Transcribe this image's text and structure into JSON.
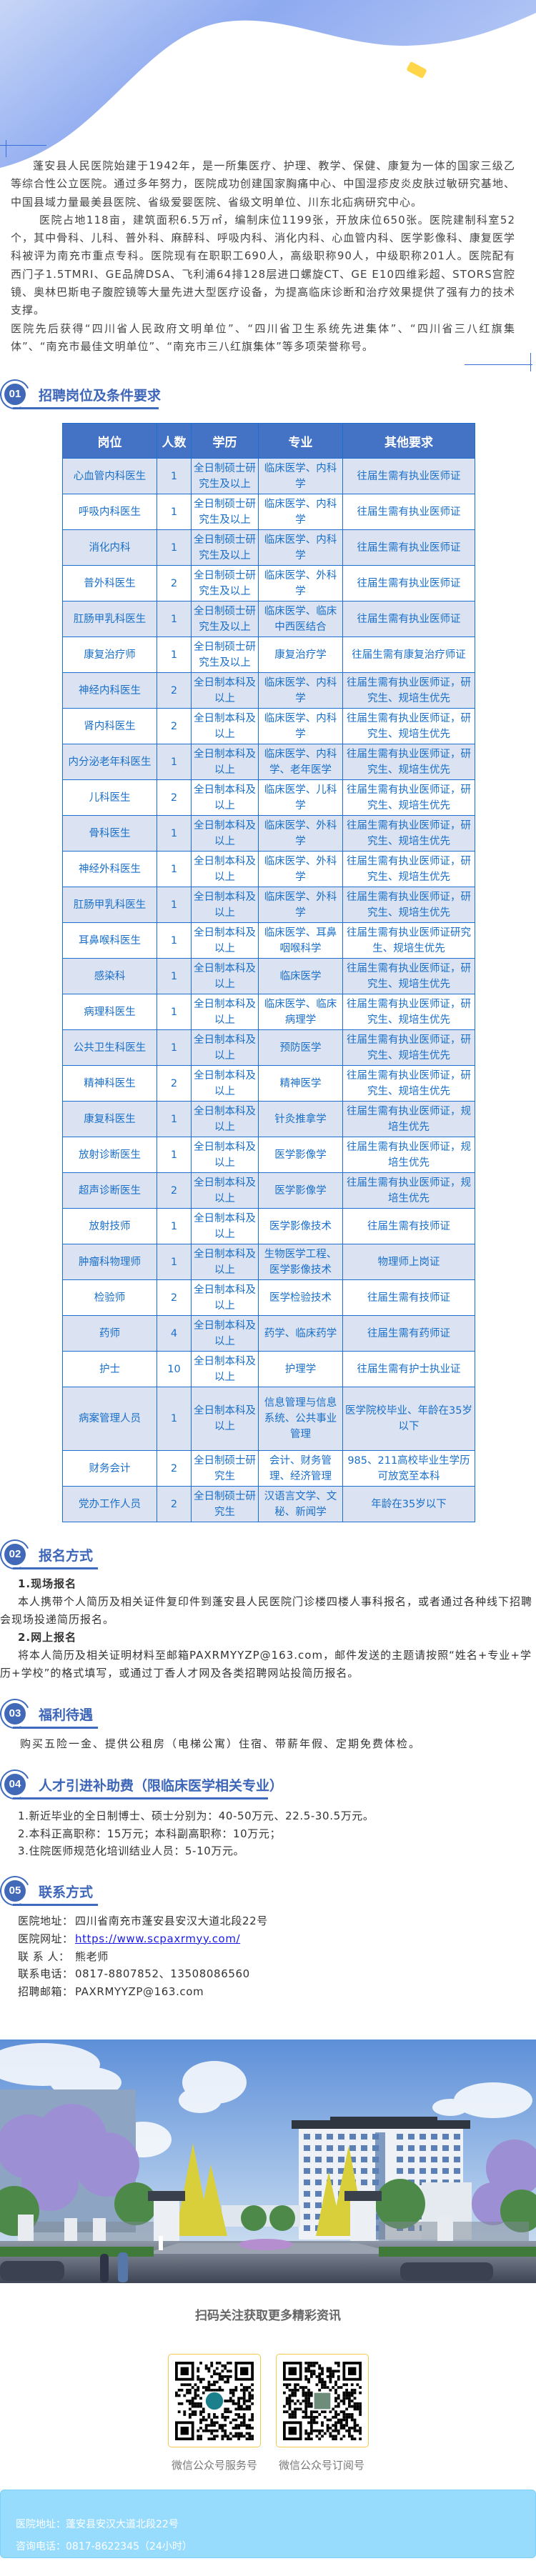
{
  "colors": {
    "accent": "#3f6bbf",
    "table_header_bg": "#4472c4",
    "table_text": "#1a6fc9",
    "table_shade": "#dbe3f2",
    "footer_bg": "#98dcfd",
    "qr_border": "#f3c94b"
  },
  "intro": {
    "paragraphs": [
      "蓬安县人民医院始建于1942年，是一所集医疗、护理、教学、保健、康复为一体的国家三级乙等综合性公立医院。通过多年努力，医院成功创建国家胸痛中心、中国湿疹皮炎皮肤过敏研究基地、中国县域力量最美县医院、省级爱婴医院、省级文明单位、川东北疝病研究中心。",
      "医院占地118亩，建筑面积6.5万㎡，编制床位1199张，开放床位650张。医院建制科室52个，其中骨科、儿科、普外科、麻醉科、呼吸内科、消化内科、心血管内科、医学影像科、康复医学科被评为南充市重点专科。医院现有在职职工690人，高级职称90人，中级职称201人。医院配有西门子1.5TMRI、GE品牌DSA、飞利浦64排128层进口螺旋CT、GE E10四维彩超、STORS宫腔镜、奥林巴斯电子腹腔镜等大量先进大型医疗设备，为提高临床诊断和治疗效果提供了强有力的技术支撑。",
      "医院先后获得“四川省人民政府文明单位”、“四川省卫生系统先进集体”、“四川省三八红旗集体”、“南充市最佳文明单位”、“南充市三八红旗集体”等多项荣誉称号。"
    ]
  },
  "sections": [
    {
      "number": "01",
      "title": "招聘岗位及条件要求"
    },
    {
      "number": "02",
      "title": "报名方式"
    },
    {
      "number": "03",
      "title": "福利待遇"
    },
    {
      "number": "04",
      "title": "人才引进补助费（限临床医学相关专业）"
    },
    {
      "number": "05",
      "title": "联系方式"
    }
  ],
  "table": {
    "headers": [
      "岗位",
      "人数",
      "学历",
      "专业",
      "其他要求"
    ],
    "rows": [
      [
        "心血管内科医生",
        "1",
        "全日制硕士研究生及以上",
        "临床医学、内科学",
        "往届生需有执业医师证"
      ],
      [
        "呼吸内科医生",
        "1",
        "全日制硕士研究生及以上",
        "临床医学、内科学",
        "往届生需有执业医师证"
      ],
      [
        "消化内科",
        "1",
        "全日制硕士研究生及以上",
        "临床医学、内科学",
        "往届生需有执业医师证"
      ],
      [
        "普外科医生",
        "2",
        "全日制硕士研究生及以上",
        "临床医学、外科学",
        "往届生需有执业医师证"
      ],
      [
        "肛肠甲乳科医生",
        "1",
        "全日制硕士研究生及以上",
        "临床医学、临床中西医结合",
        "往届生需有执业医师证"
      ],
      [
        "康复治疗师",
        "1",
        "全日制硕士研究生及以上",
        "康复治疗学",
        "往届生需有康复治疗师证"
      ],
      [
        "神经内科医生",
        "2",
        "全日制本科及以上",
        "临床医学、内科学",
        "往届生需有执业医师证，研究生、规培生优先"
      ],
      [
        "肾内科医生",
        "2",
        "全日制本科及以上",
        "临床医学、内科学",
        "往届生需有执业医师证，研究生、规培生优先"
      ],
      [
        "内分泌老年科医生",
        "1",
        "全日制本科及以上",
        "临床医学、内科学、老年医学",
        "往届生需有执业医师证，研究生、规培生优先"
      ],
      [
        "儿科医生",
        "2",
        "全日制本科及以上",
        "临床医学、儿科学",
        "往届生需有执业医师证，研究生、规培生优先"
      ],
      [
        "骨科医生",
        "1",
        "全日制本科及以上",
        "临床医学、外科学",
        "往届生需有执业医师证，研究生、规培生优先"
      ],
      [
        "神经外科医生",
        "1",
        "全日制本科及以上",
        "临床医学、外科学",
        "往届生需有执业医师证，研究生、规培生优先"
      ],
      [
        "肛肠甲乳科医生",
        "1",
        "全日制本科及以上",
        "临床医学、外科学",
        "往届生需有执业医师证，研究生、规培生优先"
      ],
      [
        "耳鼻喉科医生",
        "1",
        "全日制本科及以上",
        "临床医学、耳鼻咽喉科学",
        "往届生需有执业医师证研究生、规培生优先"
      ],
      [
        "感染科",
        "1",
        "全日制本科及以上",
        "临床医学",
        "往届生需有执业医师证，研究生、规培生优先"
      ],
      [
        "病理科医生",
        "1",
        "全日制本科及以上",
        "临床医学、临床病理学",
        "往届生需有执业医师证，研究生、规培生优先"
      ],
      [
        "公共卫生科医生",
        "1",
        "全日制本科及以上",
        "预防医学",
        "往届生需有执业医师证，研究生、规培生优先"
      ],
      [
        "精神科医生",
        "2",
        "全日制本科及以上",
        "精神医学",
        "往届生需有执业医师证，研究生、规培生优先"
      ],
      [
        "康复科医生",
        "1",
        "全日制本科及以上",
        "针灸推拿学",
        "往届生需有执业医师证，规培生优先"
      ],
      [
        "放射诊断医生",
        "1",
        "全日制本科及以上",
        "医学影像学",
        "往届生需有执业医师证，规培生优先"
      ],
      [
        "超声诊断医生",
        "2",
        "全日制本科及以上",
        "医学影像学",
        "往届生需有执业医师证，规培生优先"
      ],
      [
        "放射技师",
        "1",
        "全日制本科及以上",
        "医学影像技术",
        "往届生需有技师证"
      ],
      [
        "肿瘤科物理师",
        "1",
        "全日制本科及以上",
        "生物医学工程、医学影像技术",
        "物理师上岗证"
      ],
      [
        "检验师",
        "2",
        "全日制本科及以上",
        "医学检验技术",
        "往届生需有技师证"
      ],
      [
        "药师",
        "4",
        "全日制本科及以上",
        "药学、临床药学",
        "往届生需有药师证"
      ],
      [
        "护士",
        "10",
        "全日制本科及以上",
        "护理学",
        "往届生需有护士执业证"
      ],
      [
        "病案管理人员",
        "1",
        "全日制本科及以上",
        "信息管理与信息系统、公共事业管理",
        "医学院校毕业、年龄在35岁以下"
      ],
      [
        "财务会计",
        "2",
        "全日制硕士研究生",
        "会计、财务管理、经济管理",
        "985、211高校毕业生学历可放宽至本科"
      ],
      [
        "党办工作人员",
        "2",
        "全日制硕士研究生",
        "汉语言文学、文秘、新闻学",
        "年龄在35岁以下"
      ]
    ]
  },
  "registration": {
    "onsite_title": "1.现场报名",
    "onsite_text": "本人携带个人简历及相关证件复印件到蓬安县人民医院门诊楼四楼人事科报名，或者通过各种线下招聘会现场投递简历报名。",
    "online_title": "2.网上报名",
    "online_text": "将本人简历及相关证明材料至邮箱PAXRMYYZP@163.com，邮件发送的主题请按照“姓名+专业+学历+学校”的格式填写，或通过丁香人才网及各类招聘网站投简历报名。"
  },
  "benefits": {
    "text": "购买五险一金、提供公租房（电梯公寓）住宿、带薪年假、定期免费体检。"
  },
  "subsidy": {
    "items": [
      "1.新近毕业的全日制博士、硕士分别为：40-50万元、22.5-30.5万元。",
      "2.本科正高职称：15万元；本科副高职称：10万元；",
      "3.住院医师规范化培训结业人员：5-10万元。"
    ]
  },
  "contact": {
    "items": [
      {
        "label": "医院地址：",
        "value": "四川省南充市蓬安县安汉大道北段22号"
      },
      {
        "label": "医院网址：",
        "value": "https://www.scpaxrmyy.com/"
      },
      {
        "label": "联 系 人：",
        "value": "熊老师"
      },
      {
        "label": "联系电话：",
        "value": "0817-8807852、13508086560"
      },
      {
        "label": "招聘邮箱：",
        "value": "PAXRMYYZP@163.com"
      }
    ]
  },
  "qr": {
    "heading": "扫码关注获取更多精彩资讯",
    "codes": [
      {
        "caption": "微信公众号服务号",
        "icon": "hospital-logo"
      },
      {
        "caption": "微信公众号订阅号",
        "icon": "building-photo"
      }
    ]
  },
  "footer": {
    "address": "医院地址：蓬安县安汉大道北段22号",
    "phone": "咨询电话：0817-8622345（24小时）"
  }
}
